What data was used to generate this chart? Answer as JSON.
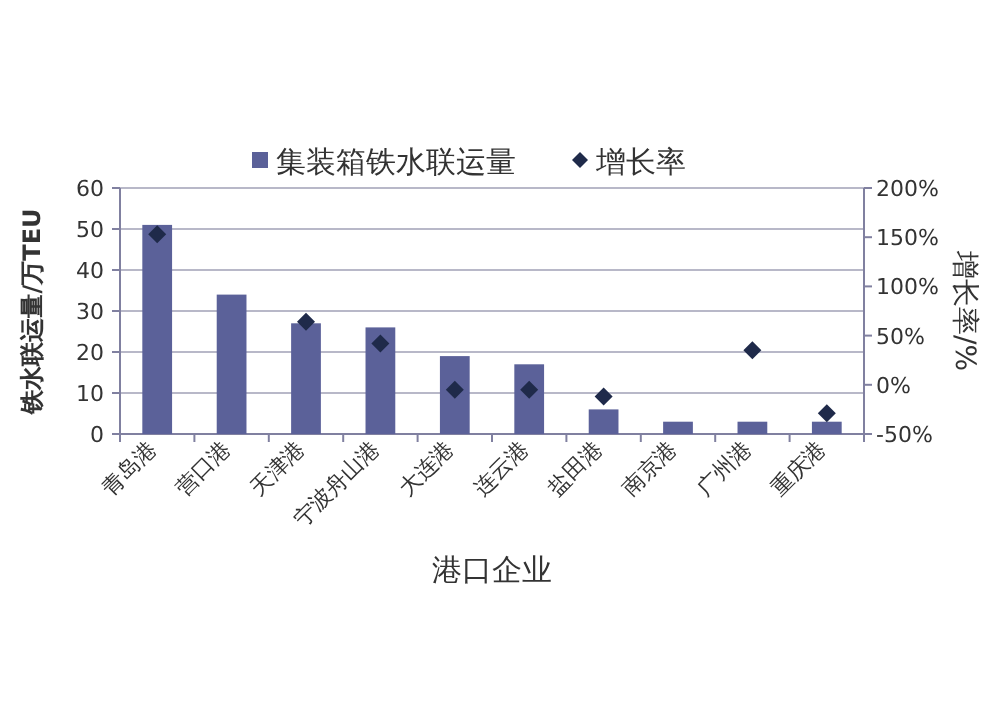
{
  "chart_data": {
    "type": "bar",
    "categories": [
      "青岛港",
      "营口港",
      "天津港",
      "宁波舟山港",
      "大连港",
      "连云港",
      "盐田港",
      "南京港",
      "广州港",
      "重庆港"
    ],
    "series": [
      {
        "name": "集装箱铁水联运量",
        "color": "#5b6199",
        "values": [
          51,
          34,
          27,
          26,
          19,
          17,
          6,
          3,
          3,
          3
        ]
      },
      {
        "name": "增长率",
        "type": "scatter",
        "axis": "y2",
        "marker": "diamond",
        "color": "#1f2a4a",
        "values": [
          153,
          null,
          64,
          42,
          -5,
          -5,
          -12,
          null,
          35,
          -29
        ]
      }
    ],
    "xlabel": "港口企业",
    "ylabel": "铁水联运量/万TEU",
    "y2label": "增长率/%",
    "ylim": [
      0,
      60
    ],
    "yticks": [
      0,
      10,
      20,
      30,
      40,
      50,
      60
    ],
    "y2lim": [
      -50,
      200
    ],
    "y2ticks": [
      {
        "value": -50,
        "label": "-50%"
      },
      {
        "value": 0,
        "label": "0%"
      },
      {
        "value": 50,
        "label": "50%"
      },
      {
        "value": 100,
        "label": "100%"
      },
      {
        "value": 150,
        "label": "150%"
      },
      {
        "value": 200,
        "label": "200%"
      }
    ],
    "grid": "y",
    "legend": "top"
  }
}
